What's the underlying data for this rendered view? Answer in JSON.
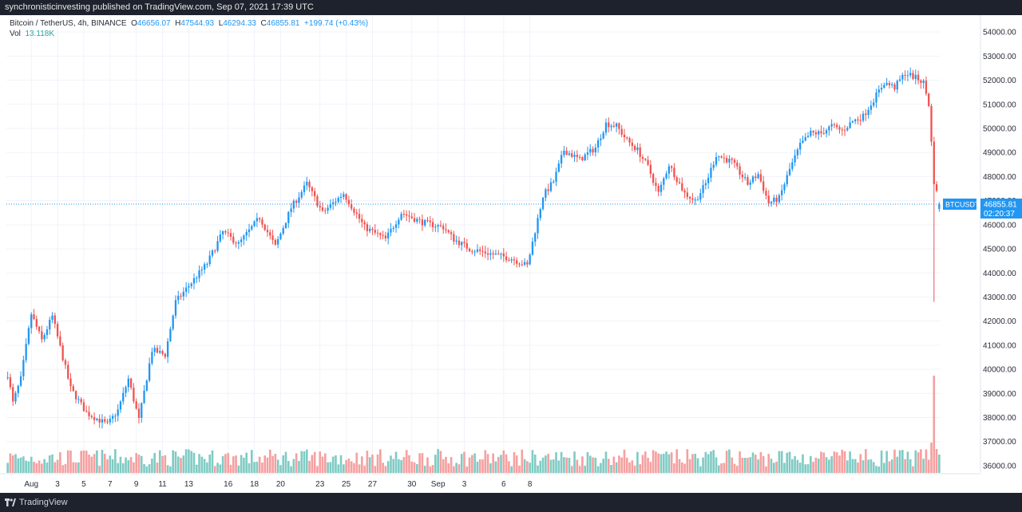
{
  "header": {
    "attribution": "synchronisticinvesting published on TradingView.com, Sep 07, 2021 17:39 UTC"
  },
  "footer": {
    "brand": "TradingView",
    "logo_icon": "tradingview-logo-icon"
  },
  "legend": {
    "symbol": "Bitcoin / TetherUS, 4h, BINANCE",
    "open_label": "O",
    "open": "46656.07",
    "high_label": "H",
    "high": "47544.93",
    "low_label": "L",
    "low": "46294.33",
    "close_label": "C",
    "close": "46855.81",
    "change": "+199.74 (+0.43%)",
    "vol_label": "Vol",
    "vol": "13.118K"
  },
  "price_tag": {
    "symbol": "BTCUSDT",
    "price": "46855.81",
    "countdown": "02:20:37"
  },
  "colors": {
    "up": "#2196f3",
    "down": "#ef5350",
    "vol_up": "#80cbc4",
    "vol_down": "#f5a0a0",
    "grid": "#f0f3fa",
    "axis_text": "#2a2e39",
    "price_line": "#2196f3",
    "price_tag_bg": "#2196f3"
  },
  "chart_data": {
    "type": "candlestick",
    "symbol": "BTCUSDT",
    "interval": "4h",
    "y_range": [
      35700,
      54700
    ],
    "y_ticks": [
      "54000.00",
      "53000.00",
      "52000.00",
      "51000.00",
      "50000.00",
      "49000.00",
      "48000.00",
      "47000.00",
      "46000.00",
      "45000.00",
      "44000.00",
      "43000.00",
      "42000.00",
      "41000.00",
      "40000.00",
      "39000.00",
      "38000.00",
      "37000.00",
      "36000.00"
    ],
    "y_tick_values": [
      54000,
      53000,
      52000,
      51000,
      50000,
      49000,
      48000,
      47000,
      46000,
      45000,
      44000,
      43000,
      42000,
      41000,
      40000,
      39000,
      38000,
      37000,
      36000
    ],
    "x_ticks": [
      "Aug",
      "3",
      "5",
      "7",
      "9",
      "11",
      "13",
      "16",
      "18",
      "20",
      "23",
      "25",
      "27",
      "30",
      "Sep",
      "3",
      "6",
      "8"
    ],
    "x_tick_bar_index": [
      9,
      19,
      29,
      39,
      49,
      59,
      69,
      84,
      94,
      104,
      119,
      129,
      139,
      154,
      164,
      174,
      189,
      199
    ],
    "last_price": 46855.81,
    "keypoints": [
      [
        0,
        39800
      ],
      [
        2,
        38600
      ],
      [
        5,
        39600
      ],
      [
        9,
        42300
      ],
      [
        13,
        41200
      ],
      [
        17,
        42200
      ],
      [
        24,
        39200
      ],
      [
        30,
        38200
      ],
      [
        38,
        37700
      ],
      [
        42,
        38300
      ],
      [
        46,
        39600
      ],
      [
        50,
        37900
      ],
      [
        55,
        40800
      ],
      [
        60,
        40600
      ],
      [
        64,
        42800
      ],
      [
        70,
        43600
      ],
      [
        76,
        44400
      ],
      [
        82,
        45700
      ],
      [
        88,
        45200
      ],
      [
        96,
        46300
      ],
      [
        102,
        45100
      ],
      [
        108,
        46700
      ],
      [
        114,
        47700
      ],
      [
        120,
        46500
      ],
      [
        128,
        47300
      ],
      [
        136,
        45900
      ],
      [
        144,
        45400
      ],
      [
        150,
        46500
      ],
      [
        158,
        46100
      ],
      [
        166,
        45900
      ],
      [
        170,
        45400
      ],
      [
        176,
        45000
      ],
      [
        184,
        44800
      ],
      [
        192,
        44600
      ],
      [
        198,
        44300
      ],
      [
        204,
        47200
      ],
      [
        208,
        47800
      ],
      [
        212,
        49100
      ],
      [
        218,
        48700
      ],
      [
        224,
        49200
      ],
      [
        228,
        50200
      ],
      [
        232,
        50100
      ],
      [
        236,
        49500
      ],
      [
        240,
        49100
      ],
      [
        244,
        48400
      ],
      [
        248,
        47300
      ],
      [
        252,
        48500
      ],
      [
        258,
        47300
      ],
      [
        262,
        47000
      ],
      [
        266,
        47700
      ],
      [
        270,
        48900
      ],
      [
        276,
        48600
      ],
      [
        282,
        47700
      ],
      [
        286,
        48100
      ],
      [
        290,
        46900
      ],
      [
        294,
        47100
      ],
      [
        298,
        48300
      ],
      [
        302,
        49300
      ],
      [
        306,
        49800
      ],
      [
        310,
        49800
      ],
      [
        314,
        50100
      ],
      [
        318,
        49900
      ],
      [
        322,
        50300
      ],
      [
        326,
        50500
      ],
      [
        330,
        51200
      ],
      [
        334,
        51900
      ],
      [
        338,
        51700
      ],
      [
        342,
        52300
      ],
      [
        346,
        52100
      ],
      [
        349,
        51900
      ],
      [
        351,
        51000
      ],
      [
        353,
        47800
      ],
      [
        355,
        46855.81
      ]
    ],
    "n_bars": 356,
    "spikes": [
      [
        353,
        47000,
        42800
      ]
    ]
  }
}
